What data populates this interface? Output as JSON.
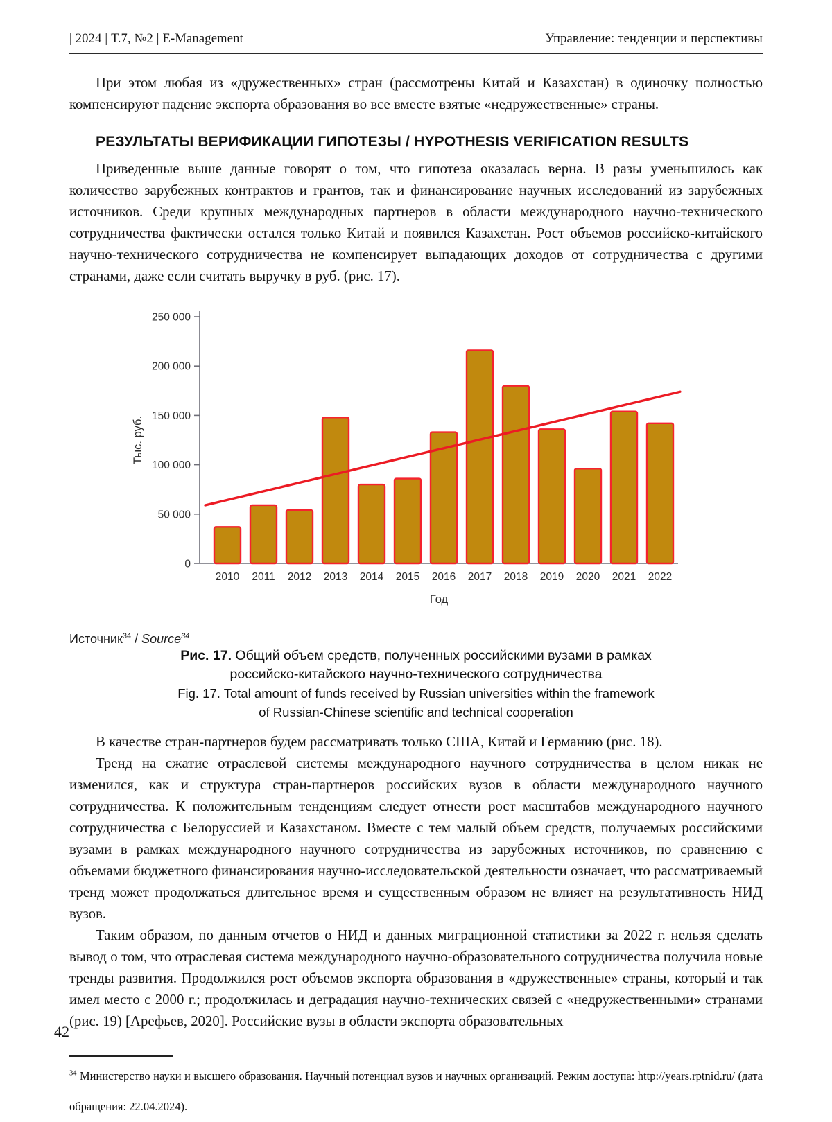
{
  "header": {
    "left": "| 2024 | Т.7, №2 | E-Management",
    "right": "Управление: тенденции и перспективы"
  },
  "content": {
    "para_intro": "При этом любая из «дружественных» стран (рассмотрены Китай и Казахстан) в одиночку полностью компенсируют падение экспорта образования во все вместе взятые «недружественные» страны.",
    "heading": "РЕЗУЛЬТАТЫ ВЕРИФИКАЦИИ ГИПОТЕЗЫ / HYPOTHESIS VERIFICATION RESULTS",
    "para_results": "Приведенные выше данные говорят о том, что гипотеза оказалась верна. В разы уменьшилось как количество зарубежных контрактов и грантов, так и финансирование научных исследований из зарубежных источников. Среди крупных международных партнеров в области международного научно-технического сотрудничества фактически остался только Китай и появился Казахстан. Рост объемов российско-китайского научно-технического сотрудничества не компенсирует выпадающих доходов от сотрудничества с другими странами, даже если считать выручку в руб. (рис. 17).",
    "para_partners": "В качестве стран-партнеров будем рассматривать только США, Китай и Германию (рис. 18).",
    "para_trend": "Тренд на сжатие отраслевой системы международного научного сотрудничества в целом никак не изменился, как и структура стран-партнеров российских вузов в области международного научного сотрудничества. К положительным тенденциям следует отнести рост масштабов международного научного сотрудничества с Белоруссией и Казахстаном. Вместе с тем малый объем средств, получаемых российскими вузами в рамках международного научного сотрудничества из зарубежных источников, по сравнению с объемами бюджетного финансирования научно-исследовательской деятельности означает, что рассматриваемый тренд может продолжаться длительное время и существенным образом не влияет на результативность НИД вузов.",
    "para_conclusion": "Таким образом, по данным отчетов о НИД и данных миграционной статистики за 2022 г. нельзя сделать вывод о том, что отраслевая система международного научно-образовательного сотрудничества получила новые тренды развития. Продолжился рост объемов экспорта образования в «дружественные» страны, который и так имел место с 2000 г.; продолжилась и деградация научно-технических связей с «недружественными» странами (рис. 19) [Арефьев, 2020]. Российские вузы в области экспорта образовательных"
  },
  "figure": {
    "source_ru": "Источник",
    "source_sup_ru": "34",
    "source_sep": " / ",
    "source_en": "Source",
    "source_sup_en": "34",
    "caption_ru_bold": "Рис. 17.",
    "caption_ru_line1": " Общий объем средств, полученных российскими вузами в рамках",
    "caption_ru_line2": "российско-китайского научно-технического сотрудничества",
    "caption_en_line1": "Fig. 17. Total amount of funds received by Russian universities within the framework",
    "caption_en_line2": "of Russian-Chinese scientific and technical cooperation"
  },
  "chart_data": {
    "type": "bar",
    "categories": [
      "2010",
      "2011",
      "2012",
      "2013",
      "2014",
      "2015",
      "2016",
      "2017",
      "2018",
      "2019",
      "2020",
      "2021",
      "2022"
    ],
    "values": [
      37000,
      59000,
      54000,
      148000,
      80000,
      86000,
      133000,
      216000,
      180000,
      136000,
      96000,
      154000,
      142000
    ],
    "trend_line": {
      "type": "linear",
      "start_value": 59000,
      "end_value": 174000
    },
    "title": "",
    "xlabel": "Год",
    "ylabel": "Тыс. руб.",
    "ylim": [
      0,
      250000
    ],
    "yticks": [
      0,
      50000,
      100000,
      150000,
      200000,
      250000
    ],
    "ytick_labels": [
      "0",
      "50 000",
      "100 000",
      "150 000",
      "200 000",
      "250 000"
    ],
    "grid": false,
    "legend": false,
    "bar_color": "#C1890E",
    "bar_border_color": "#F5232E",
    "trend_color": "#EC1B24",
    "axis_color": "#6e6e78"
  },
  "footnote": {
    "sup": "34",
    "text_before_link": " Министерство науки и высшего образования. Научный потенциал вузов и научных организаций. Режим доступа: ",
    "link": "http://years.rptnid.ru/",
    "text_after_link": " (дата обращения: 22.04.2024)."
  },
  "page": {
    "number": "42"
  }
}
